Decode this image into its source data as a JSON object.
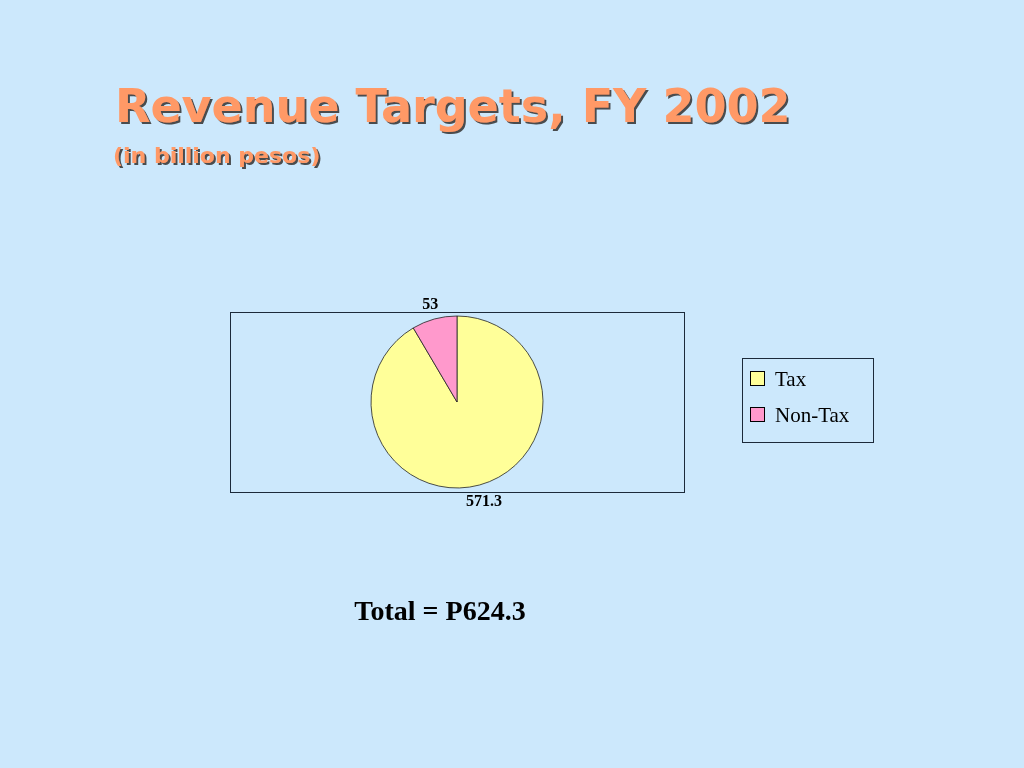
{
  "chart_data": {
    "type": "pie",
    "title": "Revenue Targets, FY 2002",
    "subtitle": "(in billion pesos)",
    "categories": [
      "Tax",
      "Non-Tax"
    ],
    "values": [
      571.3,
      53
    ],
    "colors": [
      "#ffff99",
      "#ff99cc"
    ],
    "data_labels": true,
    "legend": "right",
    "annotations": [
      "Total = P624.3"
    ]
  }
}
